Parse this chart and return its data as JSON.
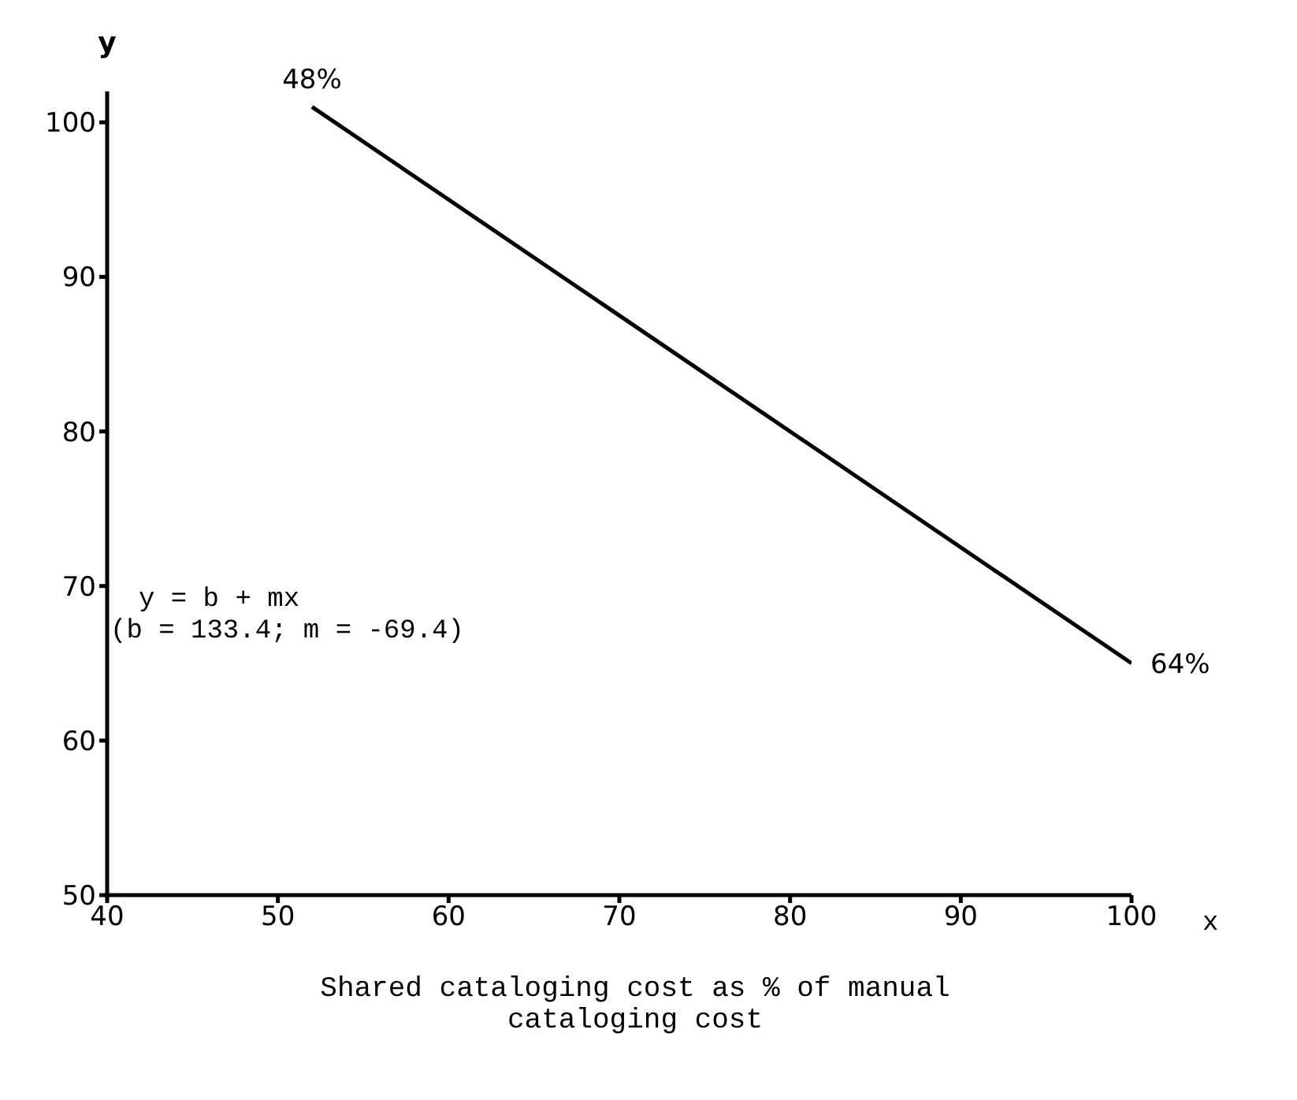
{
  "chart_data": {
    "type": "line",
    "xlabel": "Shared cataloging cost as % of manual cataloging cost",
    "ylabel": "y",
    "x": [
      52,
      100
    ],
    "series": [
      {
        "color": "#000000",
        "values": [
          101,
          65
        ]
      }
    ],
    "xlim": [
      40,
      100
    ],
    "xticks": [
      40,
      50,
      60,
      70,
      80,
      90,
      100
    ],
    "ylim": [
      50,
      102
    ],
    "yticks": [
      50,
      60,
      70,
      80,
      90,
      100
    ],
    "grid": false,
    "legend": false,
    "marker": "none",
    "line_style": "solid",
    "annotations": [
      {
        "text": "48%",
        "x": 52,
        "y": 101
      },
      {
        "text": "64%",
        "x": 100,
        "y": 65
      },
      "y = b + mx",
      "(b = 133.4;  m = -69.4)",
      "x"
    ]
  }
}
